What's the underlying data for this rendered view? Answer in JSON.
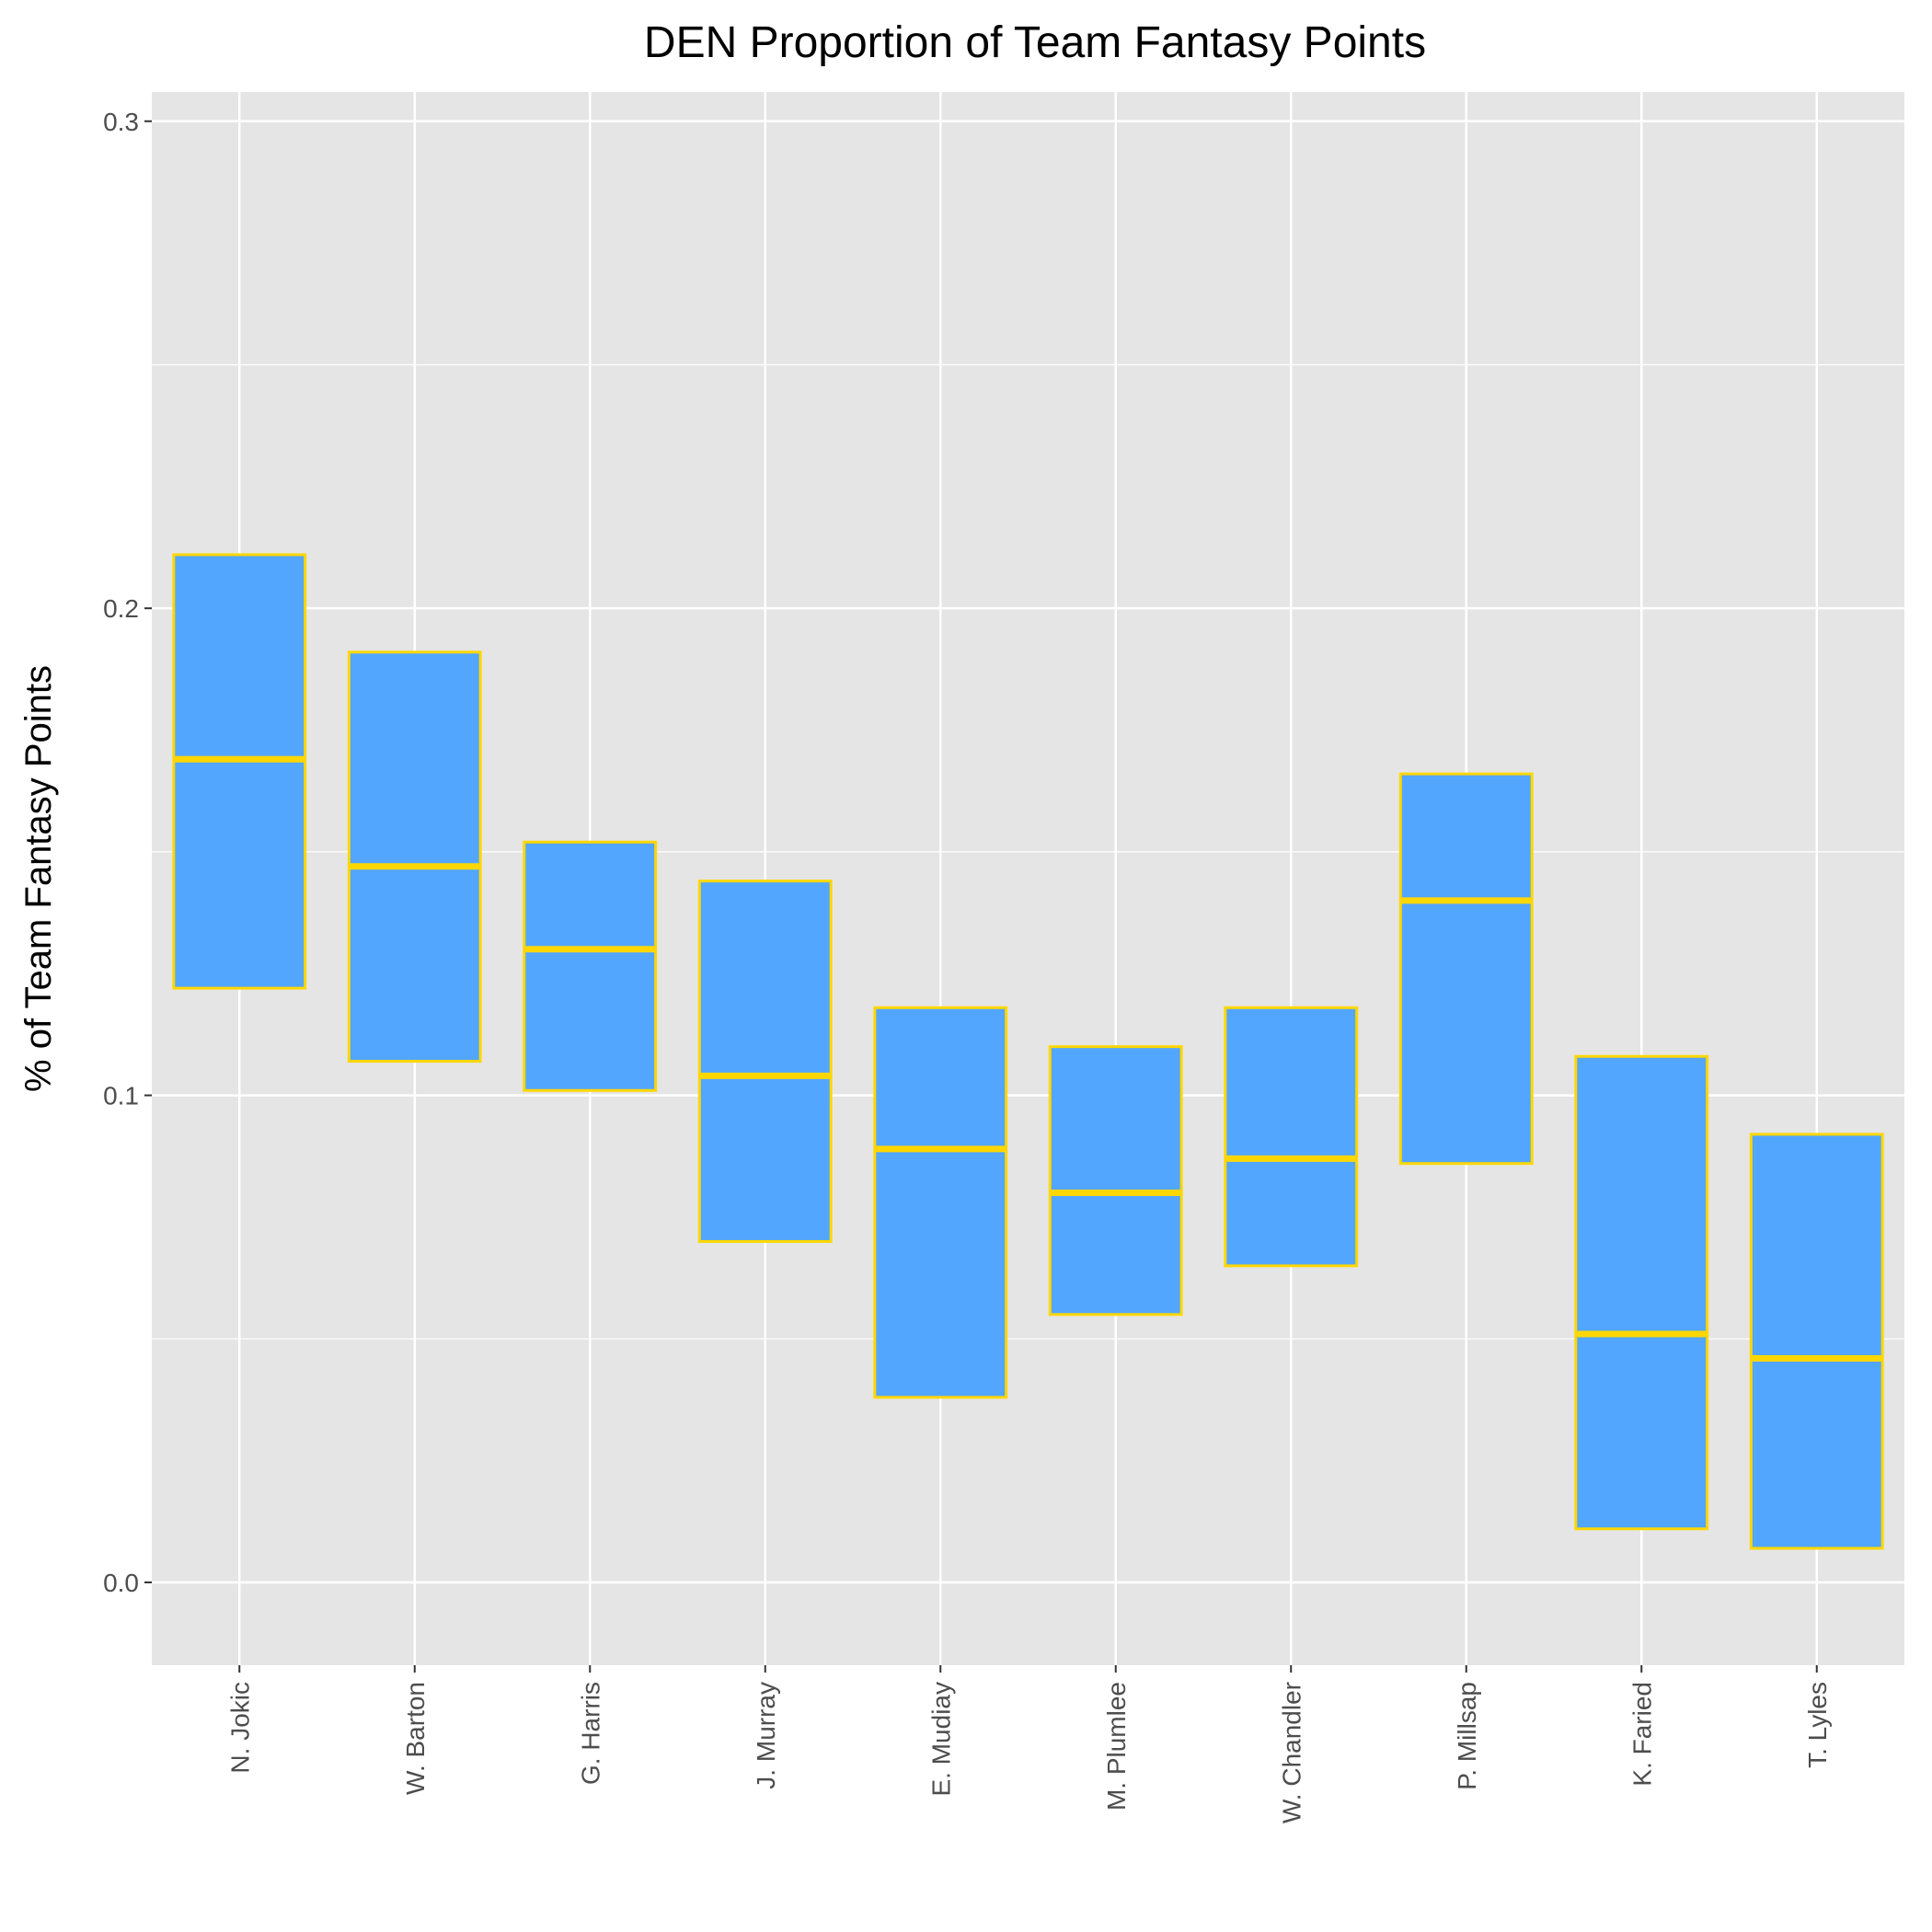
{
  "chart_data": {
    "type": "box",
    "title": "DEN Proportion of Team Fantasy Points",
    "xlabel": "",
    "ylabel": "% of Team Fantasy Points",
    "ylim": [
      -0.017,
      0.306
    ],
    "yticks": [
      "0.0",
      "0.1",
      "0.2",
      "0.3"
    ],
    "ytick_values": [
      0.0,
      0.1,
      0.2,
      0.3
    ],
    "categories": [
      "N. Jokic",
      "W. Barton",
      "G. Harris",
      "J. Murray",
      "E. Mudiay",
      "M. Plumlee",
      "W. Chandler",
      "P. Millsap",
      "K. Faried",
      "T. Lyles"
    ],
    "q1": [
      0.122,
      0.107,
      0.101,
      0.07,
      0.038,
      0.055,
      0.065,
      0.086,
      0.011,
      0.007
    ],
    "median": [
      0.169,
      0.147,
      0.13,
      0.104,
      0.089,
      0.08,
      0.087,
      0.14,
      0.051,
      0.046
    ],
    "q3": [
      0.211,
      0.191,
      0.152,
      0.144,
      0.118,
      0.11,
      0.118,
      0.166,
      0.108,
      0.092
    ],
    "grid": true,
    "legend": "none",
    "colors": {
      "fill": "#52a6fe",
      "outline": "#ffd700",
      "panel": "#e5e5e5",
      "grid": "#ffffff",
      "tick_text": "#4d4d4d"
    }
  }
}
